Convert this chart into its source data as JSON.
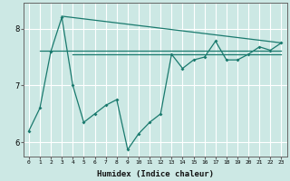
{
  "title": "",
  "xlabel": "Humidex (Indice chaleur)",
  "background_color": "#cce8e4",
  "grid_color": "#ffffff",
  "line_color": "#1a7a6e",
  "x_values": [
    0,
    1,
    2,
    3,
    4,
    5,
    6,
    7,
    8,
    9,
    10,
    11,
    12,
    13,
    14,
    15,
    16,
    17,
    18,
    19,
    20,
    21,
    22,
    23
  ],
  "y_main": [
    6.2,
    6.6,
    7.6,
    8.2,
    7.0,
    6.35,
    6.5,
    6.65,
    6.75,
    5.87,
    6.15,
    6.35,
    6.5,
    7.55,
    7.3,
    7.45,
    7.5,
    7.78,
    7.45,
    7.45,
    7.55,
    7.68,
    7.62,
    7.75
  ],
  "trend1_x": [
    3,
    23
  ],
  "trend1_y": [
    8.22,
    7.75
  ],
  "trend2_x": [
    1,
    23
  ],
  "trend2_y": [
    7.62,
    7.62
  ],
  "trend3_x": [
    4,
    23
  ],
  "trend3_y": [
    7.55,
    7.55
  ],
  "ylim": [
    5.75,
    8.45
  ],
  "yticks": [
    6,
    7,
    8
  ],
  "xlim": [
    -0.5,
    23.5
  ]
}
